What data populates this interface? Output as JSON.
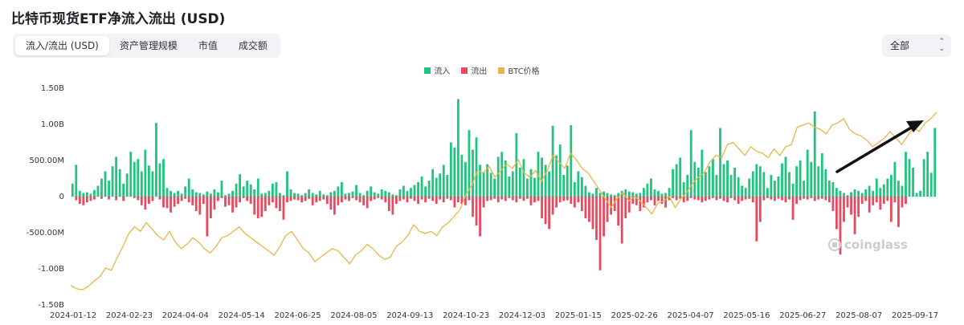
{
  "title": "比特币现货ETF净流入流出 (USD)",
  "tabs": [
    "流入/流出 (USD)",
    "资产管理规模",
    "市值",
    "成交额"
  ],
  "active_tab": 0,
  "range_select": {
    "value": "全部",
    "arrow_icon": "chevron-up-down-icon"
  },
  "legend": [
    {
      "label": "流入",
      "color": "#1fc47e"
    },
    {
      "label": "流出",
      "color": "#e8495f"
    },
    {
      "label": "BTC价格",
      "color": "#e9b54a"
    }
  ],
  "watermark": "coinglass",
  "annotation": {
    "type": "arrow",
    "color": "#111111"
  },
  "chart_data": {
    "type": "bar",
    "title": "比特币现货ETF净流入流出 (USD)",
    "xlabel": "",
    "ylabel": "",
    "ylim": [
      -1.5,
      1.5
    ],
    "y_unit": "B USD",
    "y_ticks": [
      {
        "value": 1.5,
        "label": "1.50B"
      },
      {
        "value": 1.0,
        "label": "1.00B"
      },
      {
        "value": 0.5,
        "label": "500.00M"
      },
      {
        "value": 0,
        "label": "0"
      },
      {
        "value": -0.5,
        "label": "-500.00M"
      },
      {
        "value": -1.0,
        "label": "-1.00B"
      },
      {
        "value": -1.5,
        "label": "-1.50B"
      }
    ],
    "x_ticks": [
      "2024-01-12",
      "2024-02-23",
      "2024-04-04",
      "2024-05-14",
      "2024-06-25",
      "2024-08-05",
      "2024-09-13",
      "2024-10-23",
      "2024-12-03",
      "2025-01-15",
      "2025-02-26",
      "2025-04-07",
      "2025-05-16",
      "2025-06-27",
      "2025-08-07",
      "2025-09-17"
    ],
    "series": [
      {
        "name": "流入",
        "color": "#1fc47e",
        "values": [
          0.18,
          0.44,
          0.08,
          0.05,
          0.06,
          0.04,
          0.09,
          0.15,
          0.25,
          0.35,
          0.22,
          0.42,
          0.55,
          0.38,
          0.18,
          0.32,
          0.62,
          0.48,
          0.52,
          0.35,
          0.65,
          0.43,
          0.35,
          1.02,
          0.46,
          0.52,
          0.12,
          0.08,
          0.05,
          0.08,
          0.04,
          0.14,
          0.25,
          0.1,
          0.06,
          0.05,
          0.03,
          0.07,
          0.04,
          0.1,
          0.06,
          0.22,
          0.02,
          0.04,
          0.08,
          0.18,
          0.31,
          0.14,
          0.22,
          0.17,
          0.1,
          0.25,
          0.04,
          0.05,
          0.08,
          0.18,
          0.2,
          0.05,
          0.02,
          0.35,
          0.1,
          0.05,
          0.04,
          0.02,
          0.05,
          0.1,
          0.05,
          0.03,
          0.08,
          0.03,
          0.02,
          0.06,
          0.08,
          0.14,
          0.2,
          0.04,
          0.05,
          0.07,
          0.16,
          0.05,
          0.02,
          0.08,
          0.14,
          0.06,
          0.04,
          0.1,
          0.08,
          0.06,
          0.03,
          0.02,
          0.1,
          0.15,
          0.08,
          0.12,
          0.16,
          0.2,
          0.28,
          0.14,
          0.22,
          0.38,
          0.26,
          0.32,
          0.44,
          0.3,
          0.75,
          0.68,
          1.35,
          0.58,
          0.48,
          0.92,
          0.65,
          0.82,
          0.44,
          0.34,
          0.45,
          0.33,
          0.25,
          0.55,
          0.62,
          0.5,
          0.28,
          0.35,
          0.88,
          0.4,
          0.52,
          0.25,
          0.38,
          0.26,
          0.62,
          0.54,
          0.44,
          0.35,
          0.98,
          0.57,
          0.72,
          0.3,
          0.43,
          0.99,
          0.2,
          0.35,
          0.27,
          0.15,
          0.06,
          0.04,
          0.12,
          0.05,
          0.07,
          0.05,
          0.03,
          0.02,
          0.05,
          0.08,
          0.1,
          0.07,
          0.06,
          0.04,
          0.05,
          0.12,
          0.18,
          0.25,
          0.1,
          0.08,
          0.04,
          0.05,
          0.12,
          0.38,
          0.45,
          0.54,
          0.2,
          0.3,
          0.92,
          0.48,
          0.4,
          0.65,
          0.34,
          0.42,
          0.52,
          0.3,
          0.95,
          0.45,
          0.5,
          0.3,
          0.4,
          0.27,
          0.15,
          0.12,
          0.25,
          0.35,
          0.45,
          0.42,
          0.34,
          0.12,
          0.3,
          0.22,
          0.28,
          0.46,
          0.55,
          0.34,
          0.18,
          0.42,
          0.5,
          0.22,
          0.65,
          0.48,
          1.18,
          0.42,
          0.6,
          0.38,
          0.22,
          0.2,
          0.12,
          0.08,
          0.05,
          0.02,
          0.06,
          0.1,
          0.08,
          0.05,
          0.1,
          0.15,
          0.08,
          0.25,
          0.12,
          0.17,
          0.25,
          0.3,
          0.48,
          0.22,
          0.15,
          0.62,
          0.52,
          0.4,
          0.05,
          0.08,
          0.52,
          0.62,
          0.33,
          0.95
        ]
      },
      {
        "name": "流出",
        "color": "#e8495f",
        "values": [
          0,
          -0.05,
          -0.1,
          -0.12,
          -0.08,
          -0.06,
          -0.04,
          0,
          -0.03,
          0,
          -0.04,
          0,
          -0.05,
          0,
          -0.06,
          0,
          0,
          -0.02,
          -0.05,
          -0.12,
          -0.18,
          -0.1,
          -0.06,
          0,
          -0.04,
          -0.15,
          -0.16,
          -0.22,
          -0.14,
          -0.1,
          -0.06,
          -0.03,
          -0.08,
          -0.12,
          -0.2,
          -0.25,
          -0.1,
          -0.55,
          -0.3,
          -0.18,
          -0.06,
          -0.02,
          -0.14,
          -0.12,
          -0.22,
          -0.15,
          -0.08,
          -0.02,
          -0.06,
          -0.1,
          -0.25,
          -0.3,
          -0.28,
          -0.2,
          -0.12,
          -0.08,
          -0.16,
          -0.2,
          -0.32,
          -0.08,
          -0.06,
          -0.04,
          -0.05,
          -0.08,
          -0.06,
          -0.03,
          -0.12,
          -0.08,
          -0.06,
          -0.04,
          -0.1,
          -0.18,
          -0.25,
          -0.12,
          -0.08,
          -0.04,
          -0.06,
          -0.02,
          -0.05,
          -0.08,
          -0.12,
          -0.16,
          -0.06,
          -0.04,
          -0.02,
          -0.04,
          -0.08,
          -0.2,
          -0.25,
          -0.1,
          -0.06,
          -0.04,
          -0.08,
          -0.03,
          -0.06,
          -0.1,
          -0.04,
          -0.08,
          -0.03,
          -0.06,
          -0.1,
          -0.04,
          -0.08,
          -0.03,
          -0.05,
          -0.15,
          -0.08,
          -0.1,
          -0.12,
          -0.05,
          -0.28,
          -0.4,
          -0.55,
          -0.15,
          -0.06,
          -0.05,
          -0.03,
          -0.08,
          -0.04,
          -0.06,
          -0.02,
          -0.05,
          -0.08,
          -0.03,
          -0.06,
          -0.03,
          -0.12,
          -0.08,
          -0.06,
          -0.3,
          -0.38,
          -0.45,
          -0.25,
          -0.15,
          -0.08,
          -0.06,
          -0.05,
          -0.1,
          -0.15,
          -0.08,
          -0.2,
          -0.3,
          -0.35,
          -0.45,
          -0.6,
          -1.02,
          -0.55,
          -0.35,
          -0.25,
          -0.2,
          -0.4,
          -0.65,
          -0.3,
          -0.22,
          -0.1,
          -0.12,
          -0.2,
          -0.15,
          -0.08,
          -0.05,
          -0.12,
          -0.06,
          -0.1,
          -0.15,
          -0.05,
          -0.02,
          -0.05,
          -0.03,
          -0.08,
          -0.06,
          -0.02,
          -0.04,
          -0.05,
          -0.08,
          -0.06,
          -0.04,
          -0.02,
          -0.05,
          -0.03,
          -0.06,
          -0.08,
          -0.02,
          -0.05,
          -0.1,
          -0.06,
          -0.04,
          -0.03,
          -0.08,
          -0.62,
          -0.35,
          -0.05,
          -0.02,
          -0.04,
          -0.06,
          -0.03,
          -0.05,
          -0.08,
          -0.04,
          -0.32,
          -0.1,
          -0.05,
          -0.03,
          -0.04,
          -0.02,
          -0.06,
          -0.04,
          -0.03,
          -0.05,
          -0.08,
          -0.2,
          -0.45,
          -0.8,
          -0.35,
          -0.15,
          -0.25,
          -0.52,
          -0.28,
          -0.1,
          -0.06,
          -0.22,
          -0.12,
          -0.08,
          -0.18,
          -0.1,
          -0.06,
          -0.35,
          -0.08,
          -0.42,
          -0.15,
          -0.1,
          0
        ]
      },
      {
        "name": "BTC价格",
        "color": "#e9b54a",
        "axis": "secondary",
        "ylim": [
          35000,
          135000
        ],
        "values": [
          44000,
          42500,
          42000,
          43500,
          46000,
          48000,
          52000,
          51000,
          57000,
          62000,
          68000,
          71000,
          69000,
          73000,
          70000,
          67000,
          65000,
          69000,
          64000,
          61000,
          63000,
          66000,
          64000,
          61000,
          59000,
          62000,
          66000,
          67000,
          69000,
          71000,
          68000,
          66000,
          64000,
          62000,
          60000,
          58000,
          62000,
          67000,
          69000,
          65000,
          61000,
          59000,
          55000,
          57000,
          59000,
          61000,
          60000,
          57000,
          54000,
          58000,
          60000,
          63000,
          61000,
          58000,
          56000,
          57000,
          62000,
          64000,
          67000,
          72000,
          69000,
          68000,
          69000,
          67000,
          71000,
          73000,
          76000,
          79000,
          86000,
          90000,
          97000,
          96000,
          99000,
          94000,
          97000,
          100000,
          98000,
          102000,
          96000,
          94000,
          97000,
          92000,
          97000,
          104000,
          101000,
          98000,
          105000,
          102000,
          98000,
          96000,
          92000,
          88000,
          84000,
          80000,
          84000,
          87000,
          83000,
          85000,
          83000,
          80000,
          77000,
          82000,
          83000,
          85000,
          80000,
          84000,
          87000,
          91000,
          94000,
          96000,
          101000,
          104000,
          103000,
          109000,
          110000,
          107000,
          104000,
          108000,
          106000,
          105000,
          103000,
          107000,
          104000,
          108000,
          109000,
          117000,
          118000,
          119000,
          117000,
          116000,
          114000,
          118000,
          119000,
          121000,
          116000,
          114000,
          113000,
          111000,
          108000,
          110000,
          112000,
          115000,
          112000,
          109000,
          113000,
          117000,
          115000,
          119000,
          121000,
          124000
        ]
      }
    ],
    "legend_position": "top-center",
    "grid": false
  }
}
